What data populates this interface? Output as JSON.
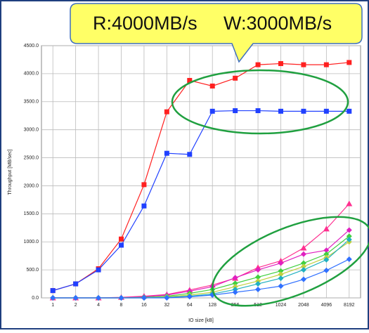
{
  "chart_data": {
    "type": "line",
    "xlabel": "IO size [kB]",
    "ylabel": "Throughput [MB/sec]",
    "annotations": [
      "R:4000MB/s",
      "W:3000MB/s"
    ],
    "categories": [
      "1",
      "2",
      "4",
      "8",
      "16",
      "32",
      "64",
      "128",
      "256",
      "512",
      "1024",
      "2048",
      "4096",
      "8192"
    ],
    "series": [
      {
        "color": "#ff2020",
        "marker": "square",
        "values": [
          130,
          250,
          520,
          1050,
          2020,
          3320,
          3880,
          3780,
          3920,
          4160,
          4180,
          4160,
          4160,
          4200
        ]
      },
      {
        "color": "#2040ff",
        "marker": "square",
        "values": [
          130,
          250,
          500,
          940,
          1640,
          2580,
          2560,
          3330,
          3340,
          3340,
          3330,
          3330,
          3330,
          3330
        ]
      },
      {
        "color": "#ff3090",
        "marker": "triangle",
        "values": [
          0,
          0,
          0,
          10,
          30,
          60,
          140,
          230,
          350,
          540,
          660,
          890,
          1230,
          1680
        ]
      },
      {
        "color": "#e020c0",
        "marker": "diamond",
        "values": [
          0,
          0,
          0,
          0,
          20,
          50,
          120,
          200,
          360,
          500,
          620,
          780,
          850,
          1210
        ]
      },
      {
        "color": "#40d040",
        "marker": "diamond",
        "values": [
          0,
          0,
          0,
          0,
          10,
          30,
          80,
          150,
          260,
          370,
          480,
          620,
          780,
          1100
        ]
      },
      {
        "color": "#c0d040",
        "marker": "diamond",
        "values": [
          0,
          0,
          0,
          0,
          0,
          20,
          50,
          100,
          200,
          300,
          420,
          560,
          720,
          1000
        ]
      },
      {
        "color": "#20b0c0",
        "marker": "diamond",
        "values": [
          0,
          0,
          0,
          0,
          0,
          10,
          30,
          70,
          150,
          250,
          350,
          500,
          680,
          1040
        ]
      },
      {
        "color": "#3070ff",
        "marker": "diamond",
        "values": [
          0,
          0,
          0,
          0,
          0,
          0,
          20,
          50,
          100,
          150,
          210,
          330,
          490,
          690
        ]
      }
    ],
    "ylim": [
      0,
      4500
    ],
    "yticks": [
      {
        "value": 0,
        "label": "0.0"
      },
      {
        "value": 500,
        "label": "500.0"
      },
      {
        "value": 1000,
        "label": "1000.0"
      },
      {
        "value": 1500,
        "label": "1500.0"
      },
      {
        "value": 2000,
        "label": "2000.0"
      },
      {
        "value": 2500,
        "label": "2500.0"
      },
      {
        "value": 3000,
        "label": "3000.0"
      },
      {
        "value": 3500,
        "label": "3500.0"
      },
      {
        "value": 4000,
        "label": "4000.0"
      },
      {
        "value": 4500,
        "label": "4500.0"
      }
    ],
    "grid": true
  }
}
